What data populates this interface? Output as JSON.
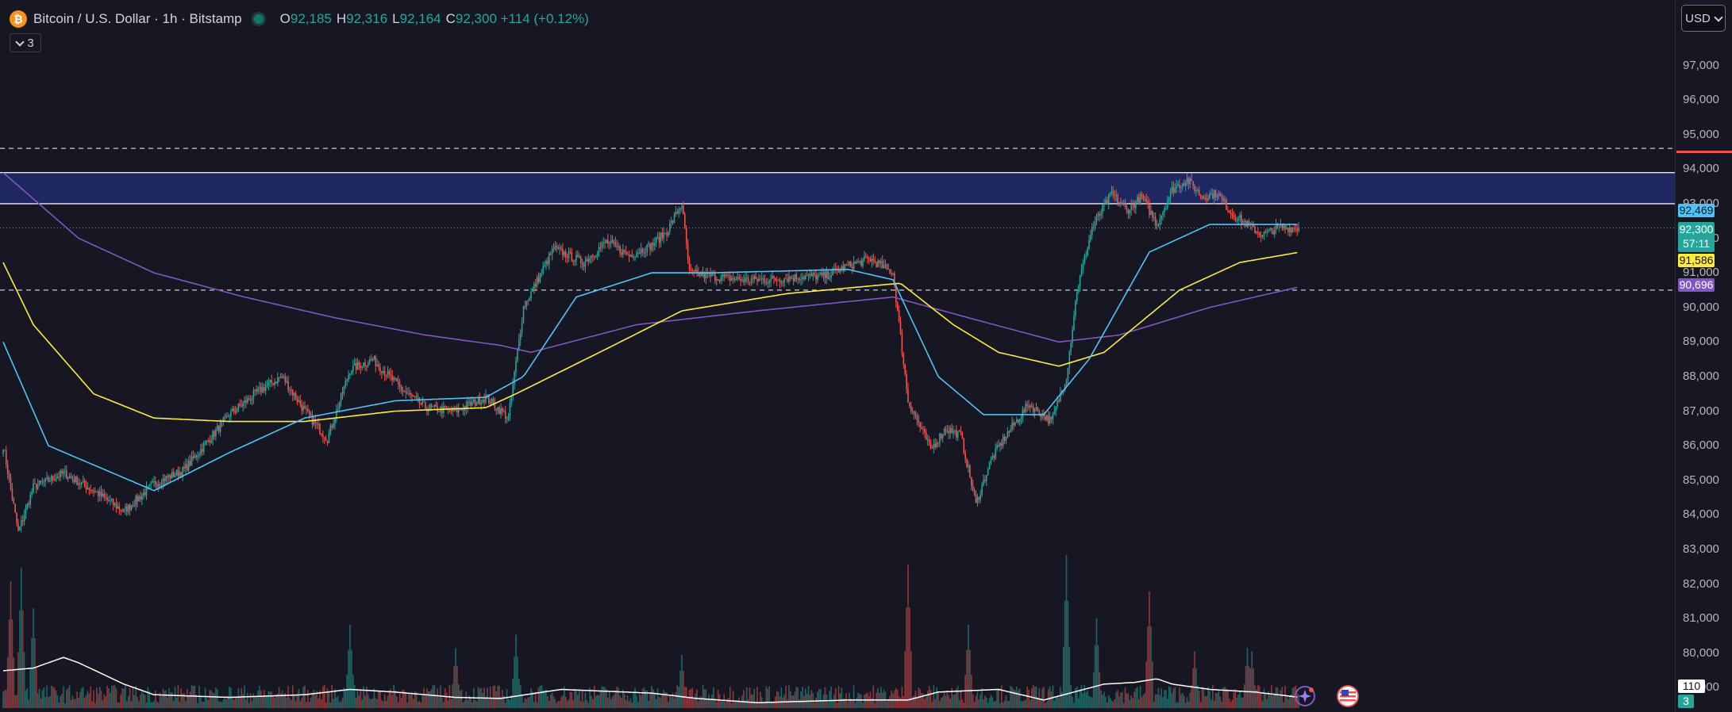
{
  "header": {
    "symbol_title": "Bitcoin / U.S. Dollar · 1h · Bitstamp",
    "ohlc": [
      {
        "key": "O",
        "value": "92,185"
      },
      {
        "key": "H",
        "value": "92,316"
      },
      {
        "key": "L",
        "value": "92,164"
      },
      {
        "key": "C",
        "value": "92,300"
      },
      {
        "key": "",
        "value": "+114 (+0.12%)"
      }
    ],
    "indicator_count": "3"
  },
  "currency": "USD",
  "price_labels": [
    "97,000",
    "96,000",
    "95,000",
    "94,000",
    "93,000",
    "92,000",
    "91,000",
    "90,000",
    "89,000",
    "88,000",
    "87,000",
    "86,000",
    "85,000",
    "84,000",
    "83,000",
    "82,000",
    "81,000",
    "80,000",
    "79,000"
  ],
  "tags": {
    "ema_fast": "92,469",
    "current_price": "92,300",
    "countdown": "57:11",
    "ema_mid": "91,586",
    "ema_slow": "90,696",
    "volume_ma": "110",
    "volume": "3"
  },
  "colors": {
    "up": "#26a69a",
    "down": "#ef5350",
    "ema_fast": "#4fc3f7",
    "ema_mid": "#ffeb3b",
    "ema_slow": "#7e57c2",
    "zone": "#283593",
    "volume_ma": "#ffffff",
    "background": "#161722"
  },
  "icons": {
    "logo": "bitcoin-logo-icon",
    "assistant": "sparkle-assistant-icon",
    "flag": "us-flag-icon"
  },
  "chart_data": {
    "type": "candlestick",
    "interval": "1h",
    "ylim": [
      79000,
      98000
    ],
    "grid": false,
    "horizontal_levels": [
      {
        "price": 94600,
        "style": "dashed"
      },
      {
        "price": 90500,
        "style": "dashed"
      }
    ],
    "zone": {
      "from": 93000,
      "to": 93900
    },
    "current_price": 92300,
    "close_anchors": [
      [
        0,
        86000
      ],
      [
        10,
        83500
      ],
      [
        20,
        84800
      ],
      [
        40,
        85200
      ],
      [
        60,
        84700
      ],
      [
        80,
        84100
      ],
      [
        100,
        84900
      ],
      [
        120,
        85300
      ],
      [
        150,
        86900
      ],
      [
        170,
        87600
      ],
      [
        185,
        88000
      ],
      [
        200,
        87000
      ],
      [
        215,
        86200
      ],
      [
        230,
        88200
      ],
      [
        245,
        88500
      ],
      [
        265,
        87600
      ],
      [
        280,
        87100
      ],
      [
        300,
        87000
      ],
      [
        320,
        87400
      ],
      [
        335,
        86800
      ],
      [
        345,
        90000
      ],
      [
        365,
        91700
      ],
      [
        385,
        91300
      ],
      [
        400,
        91900
      ],
      [
        415,
        91500
      ],
      [
        430,
        91800
      ],
      [
        440,
        92200
      ],
      [
        450,
        93000
      ],
      [
        455,
        91000
      ],
      [
        470,
        90900
      ],
      [
        490,
        90800
      ],
      [
        510,
        90800
      ],
      [
        530,
        90900
      ],
      [
        545,
        90900
      ],
      [
        560,
        91200
      ],
      [
        575,
        91400
      ],
      [
        590,
        91000
      ],
      [
        600,
        87300
      ],
      [
        615,
        85900
      ],
      [
        625,
        86500
      ],
      [
        635,
        86300
      ],
      [
        645,
        84300
      ],
      [
        655,
        85600
      ],
      [
        665,
        86300
      ],
      [
        680,
        87200
      ],
      [
        695,
        86700
      ],
      [
        705,
        88000
      ],
      [
        712,
        90500
      ],
      [
        722,
        92300
      ],
      [
        735,
        93300
      ],
      [
        745,
        92800
      ],
      [
        755,
        93200
      ],
      [
        765,
        92400
      ],
      [
        775,
        93400
      ],
      [
        785,
        93700
      ],
      [
        795,
        93200
      ],
      [
        805,
        93300
      ],
      [
        815,
        92700
      ],
      [
        825,
        92400
      ],
      [
        835,
        92100
      ],
      [
        845,
        92300
      ],
      [
        860,
        92300
      ]
    ],
    "ema_fast_anchors": [
      [
        0,
        89000
      ],
      [
        30,
        86000
      ],
      [
        100,
        84700
      ],
      [
        150,
        85800
      ],
      [
        200,
        86800
      ],
      [
        260,
        87300
      ],
      [
        320,
        87400
      ],
      [
        345,
        88000
      ],
      [
        380,
        90300
      ],
      [
        430,
        91000
      ],
      [
        470,
        91000
      ],
      [
        560,
        91100
      ],
      [
        590,
        90800
      ],
      [
        620,
        88000
      ],
      [
        650,
        86900
      ],
      [
        690,
        86900
      ],
      [
        720,
        88500
      ],
      [
        760,
        91600
      ],
      [
        800,
        92400
      ],
      [
        860,
        92400
      ]
    ],
    "ema_mid_anchors": [
      [
        0,
        91300
      ],
      [
        20,
        89500
      ],
      [
        60,
        87500
      ],
      [
        100,
        86800
      ],
      [
        150,
        86700
      ],
      [
        200,
        86700
      ],
      [
        260,
        87000
      ],
      [
        320,
        87100
      ],
      [
        340,
        87500
      ],
      [
        400,
        88800
      ],
      [
        450,
        89900
      ],
      [
        520,
        90400
      ],
      [
        595,
        90700
      ],
      [
        630,
        89500
      ],
      [
        660,
        88700
      ],
      [
        700,
        88300
      ],
      [
        730,
        88700
      ],
      [
        780,
        90500
      ],
      [
        820,
        91300
      ],
      [
        860,
        91600
      ]
    ],
    "ema_slow_anchors": [
      [
        0,
        93900
      ],
      [
        50,
        92000
      ],
      [
        100,
        91000
      ],
      [
        160,
        90300
      ],
      [
        220,
        89700
      ],
      [
        280,
        89200
      ],
      [
        330,
        88900
      ],
      [
        350,
        88700
      ],
      [
        420,
        89500
      ],
      [
        500,
        89900
      ],
      [
        590,
        90300
      ],
      [
        640,
        89700
      ],
      [
        700,
        89000
      ],
      [
        740,
        89200
      ],
      [
        800,
        90000
      ],
      [
        860,
        90600
      ]
    ],
    "volume_spikes": [
      [
        5,
        380
      ],
      [
        12,
        420
      ],
      [
        20,
        300
      ],
      [
        230,
        250
      ],
      [
        300,
        180
      ],
      [
        340,
        220
      ],
      [
        450,
        160
      ],
      [
        600,
        430
      ],
      [
        640,
        250
      ],
      [
        705,
        460
      ],
      [
        725,
        270
      ],
      [
        760,
        350
      ],
      [
        790,
        170
      ],
      [
        825,
        180
      ],
      [
        828,
        170
      ]
    ],
    "volume_ma_anchors": [
      [
        0,
        70
      ],
      [
        20,
        75
      ],
      [
        40,
        95
      ],
      [
        50,
        85
      ],
      [
        80,
        45
      ],
      [
        100,
        25
      ],
      [
        150,
        20
      ],
      [
        200,
        25
      ],
      [
        230,
        35
      ],
      [
        260,
        30
      ],
      [
        300,
        20
      ],
      [
        330,
        18
      ],
      [
        370,
        35
      ],
      [
        430,
        28
      ],
      [
        460,
        18
      ],
      [
        500,
        10
      ],
      [
        560,
        15
      ],
      [
        600,
        15
      ],
      [
        620,
        30
      ],
      [
        660,
        35
      ],
      [
        690,
        15
      ],
      [
        710,
        30
      ],
      [
        730,
        45
      ],
      [
        750,
        48
      ],
      [
        765,
        55
      ],
      [
        775,
        45
      ],
      [
        800,
        35
      ],
      [
        830,
        30
      ],
      [
        860,
        20
      ]
    ]
  }
}
